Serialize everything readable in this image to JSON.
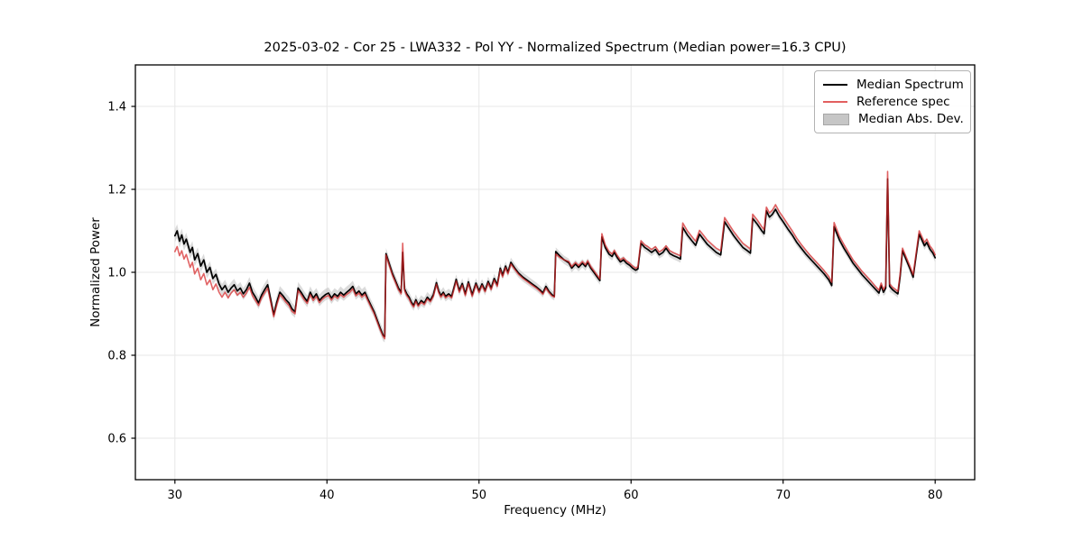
{
  "title": "2025-03-02 - Cor 25 - LWA332 - Pol YY - Normalized Spectrum (Median power=16.3 CPU)",
  "legend": {
    "items": [
      {
        "label": "Median Spectrum",
        "type": "line",
        "color": "#000000"
      },
      {
        "label": "Reference spec",
        "type": "line",
        "color": "#e25f5f"
      },
      {
        "label": "Median Abs. Dev.",
        "type": "patch",
        "color": "#c6c6c6",
        "border": "#a6a6a6"
      }
    ]
  },
  "chart_data": {
    "type": "line",
    "title": "2025-03-02 - Cor 25 - LWA332 - Pol YY - Normalized Spectrum (Median power=16.3 CPU)",
    "xlabel": "Frequency (MHz)",
    "ylabel": "Normalized Power",
    "xlim": [
      27.4,
      82.6
    ],
    "ylim": [
      0.5,
      1.5
    ],
    "xticks": [
      30,
      40,
      50,
      60,
      70,
      80
    ],
    "yticks": [
      0.6,
      0.8,
      1.0,
      1.2,
      1.4
    ],
    "grid": true,
    "legend_position": "upper right",
    "x": [
      30.0,
      30.15,
      30.3,
      30.45,
      30.6,
      30.75,
      31.0,
      31.15,
      31.3,
      31.5,
      31.7,
      31.9,
      32.1,
      32.3,
      32.5,
      32.7,
      32.9,
      33.1,
      33.3,
      33.5,
      33.7,
      33.9,
      34.1,
      34.3,
      34.5,
      34.7,
      34.9,
      35.1,
      35.3,
      35.5,
      35.7,
      35.9,
      36.1,
      36.3,
      36.5,
      36.7,
      36.9,
      37.1,
      37.3,
      37.5,
      37.7,
      37.9,
      38.1,
      38.3,
      38.5,
      38.7,
      38.9,
      39.1,
      39.3,
      39.5,
      39.7,
      39.9,
      40.1,
      40.3,
      40.5,
      40.7,
      40.9,
      41.1,
      41.3,
      41.5,
      41.7,
      41.9,
      42.1,
      42.3,
      42.5,
      42.7,
      42.9,
      43.1,
      43.3,
      43.5,
      43.7,
      43.8,
      43.88,
      44.1,
      44.3,
      44.5,
      44.7,
      44.88,
      44.98,
      45.1,
      45.25,
      45.4,
      45.55,
      45.7,
      45.85,
      46.0,
      46.2,
      46.4,
      46.6,
      46.8,
      47.0,
      47.2,
      47.35,
      47.5,
      47.65,
      47.8,
      48.0,
      48.2,
      48.5,
      48.7,
      48.9,
      49.1,
      49.3,
      49.55,
      49.8,
      50.0,
      50.2,
      50.4,
      50.6,
      50.8,
      51.0,
      51.2,
      51.4,
      51.55,
      51.75,
      51.9,
      52.1,
      52.35,
      52.6,
      52.9,
      53.2,
      53.5,
      53.8,
      54.05,
      54.2,
      54.4,
      54.6,
      54.8,
      54.95,
      55.05,
      55.3,
      55.6,
      55.9,
      56.1,
      56.35,
      56.55,
      56.8,
      57.0,
      57.15,
      57.35,
      57.55,
      57.75,
      57.95,
      58.08,
      58.3,
      58.55,
      58.75,
      58.9,
      59.1,
      59.3,
      59.5,
      59.7,
      59.9,
      60.1,
      60.3,
      60.45,
      60.65,
      60.9,
      61.1,
      61.35,
      61.6,
      61.85,
      62.1,
      62.3,
      62.55,
      62.8,
      63.05,
      63.25,
      63.4,
      63.7,
      64.0,
      64.25,
      64.5,
      64.75,
      65.0,
      65.3,
      65.6,
      65.9,
      66.15,
      66.45,
      66.75,
      67.05,
      67.35,
      67.65,
      67.85,
      68.0,
      68.3,
      68.6,
      68.75,
      68.9,
      69.1,
      69.3,
      69.5,
      69.75,
      70.0,
      70.3,
      70.6,
      70.9,
      71.2,
      71.5,
      71.8,
      72.1,
      72.4,
      72.7,
      73.0,
      73.2,
      73.35,
      73.7,
      74.0,
      74.3,
      74.6,
      74.9,
      75.2,
      75.5,
      75.8,
      76.1,
      76.3,
      76.45,
      76.6,
      76.75,
      76.87,
      77.0,
      77.2,
      77.4,
      77.55,
      77.7,
      77.85,
      78.1,
      78.35,
      78.55,
      78.75,
      78.95,
      79.15,
      79.3,
      79.45,
      79.65,
      79.85,
      80.0
    ],
    "series": [
      {
        "name": "Median Spectrum",
        "color": "#000000",
        "opacity": 1,
        "width": 1.7,
        "values": [
          1.088,
          1.1,
          1.075,
          1.09,
          1.068,
          1.08,
          1.048,
          1.06,
          1.03,
          1.045,
          1.015,
          1.03,
          1.0,
          1.012,
          0.985,
          0.995,
          0.972,
          0.958,
          0.968,
          0.952,
          0.962,
          0.97,
          0.955,
          0.962,
          0.948,
          0.958,
          0.974,
          0.952,
          0.94,
          0.926,
          0.945,
          0.958,
          0.97,
          0.935,
          0.898,
          0.928,
          0.952,
          0.944,
          0.934,
          0.926,
          0.912,
          0.905,
          0.962,
          0.952,
          0.94,
          0.93,
          0.952,
          0.938,
          0.948,
          0.932,
          0.94,
          0.946,
          0.95,
          0.938,
          0.948,
          0.942,
          0.952,
          0.945,
          0.952,
          0.958,
          0.966,
          0.948,
          0.955,
          0.945,
          0.952,
          0.935,
          0.92,
          0.905,
          0.885,
          0.865,
          0.848,
          0.845,
          1.045,
          1.02,
          0.998,
          0.98,
          0.962,
          0.952,
          1.048,
          0.96,
          0.948,
          0.94,
          0.928,
          0.92,
          0.934,
          0.921,
          0.932,
          0.926,
          0.94,
          0.932,
          0.946,
          0.975,
          0.955,
          0.944,
          0.952,
          0.942,
          0.948,
          0.942,
          0.983,
          0.956,
          0.973,
          0.948,
          0.977,
          0.946,
          0.974,
          0.955,
          0.972,
          0.956,
          0.978,
          0.962,
          0.985,
          0.97,
          1.01,
          0.993,
          1.015,
          1.0,
          1.024,
          1.01,
          0.998,
          0.988,
          0.98,
          0.972,
          0.964,
          0.956,
          0.95,
          0.966,
          0.954,
          0.946,
          0.942,
          1.05,
          1.04,
          1.03,
          1.023,
          1.01,
          1.02,
          1.012,
          1.022,
          1.014,
          1.024,
          1.01,
          1.0,
          0.99,
          0.98,
          1.085,
          1.06,
          1.044,
          1.038,
          1.048,
          1.035,
          1.025,
          1.03,
          1.022,
          1.017,
          1.01,
          1.005,
          1.008,
          1.07,
          1.06,
          1.055,
          1.048,
          1.055,
          1.042,
          1.048,
          1.058,
          1.045,
          1.04,
          1.036,
          1.032,
          1.108,
          1.09,
          1.076,
          1.065,
          1.092,
          1.08,
          1.068,
          1.058,
          1.048,
          1.042,
          1.122,
          1.105,
          1.088,
          1.074,
          1.06,
          1.052,
          1.046,
          1.13,
          1.116,
          1.1,
          1.093,
          1.148,
          1.133,
          1.14,
          1.152,
          1.135,
          1.122,
          1.105,
          1.09,
          1.072,
          1.058,
          1.044,
          1.032,
          1.02,
          1.008,
          0.996,
          0.982,
          0.968,
          1.11,
          1.078,
          1.058,
          1.04,
          1.022,
          1.008,
          0.994,
          0.982,
          0.97,
          0.958,
          0.95,
          0.968,
          0.952,
          0.962,
          1.225,
          0.966,
          0.958,
          0.952,
          0.948,
          0.99,
          1.052,
          1.03,
          1.008,
          0.988,
          1.04,
          1.092,
          1.076,
          1.064,
          1.072,
          1.056,
          1.046,
          1.035
        ]
      },
      {
        "name": "Reference spec",
        "color": "#d62728",
        "opacity": 0.72,
        "width": 1.6,
        "values": [
          1.05,
          1.062,
          1.04,
          1.052,
          1.032,
          1.043,
          1.012,
          1.024,
          0.996,
          1.01,
          0.982,
          0.997,
          0.97,
          0.982,
          0.958,
          0.972,
          0.952,
          0.94,
          0.952,
          0.938,
          0.95,
          0.958,
          0.945,
          0.952,
          0.94,
          0.95,
          0.964,
          0.944,
          0.932,
          0.92,
          0.938,
          0.95,
          0.962,
          0.928,
          0.893,
          0.922,
          0.946,
          0.938,
          0.928,
          0.92,
          0.906,
          0.9,
          0.956,
          0.946,
          0.934,
          0.925,
          0.946,
          0.932,
          0.942,
          0.927,
          0.935,
          0.941,
          0.944,
          0.933,
          0.943,
          0.937,
          0.946,
          0.94,
          0.947,
          0.952,
          0.96,
          0.943,
          0.95,
          0.94,
          0.947,
          0.931,
          0.916,
          0.901,
          0.881,
          0.861,
          0.845,
          0.84,
          1.042,
          1.016,
          0.994,
          0.976,
          0.958,
          0.948,
          1.07,
          0.956,
          0.944,
          0.936,
          0.924,
          0.916,
          0.93,
          0.918,
          0.928,
          0.922,
          0.936,
          0.929,
          0.942,
          0.971,
          0.951,
          0.94,
          0.948,
          0.938,
          0.944,
          0.938,
          0.979,
          0.952,
          0.969,
          0.944,
          0.973,
          0.942,
          0.97,
          0.951,
          0.968,
          0.953,
          0.974,
          0.958,
          0.981,
          0.966,
          1.006,
          0.989,
          1.011,
          0.996,
          1.02,
          1.007,
          0.995,
          0.985,
          0.977,
          0.969,
          0.961,
          0.953,
          0.947,
          0.962,
          0.951,
          0.943,
          0.94,
          1.044,
          1.036,
          1.03,
          1.026,
          1.014,
          1.024,
          1.016,
          1.026,
          1.018,
          1.028,
          1.014,
          1.004,
          0.994,
          0.984,
          1.093,
          1.066,
          1.05,
          1.044,
          1.053,
          1.04,
          1.03,
          1.035,
          1.027,
          1.022,
          1.015,
          1.01,
          1.013,
          1.076,
          1.066,
          1.062,
          1.055,
          1.062,
          1.049,
          1.055,
          1.064,
          1.052,
          1.047,
          1.043,
          1.04,
          1.119,
          1.1,
          1.086,
          1.075,
          1.101,
          1.09,
          1.078,
          1.068,
          1.058,
          1.052,
          1.132,
          1.115,
          1.098,
          1.084,
          1.07,
          1.062,
          1.056,
          1.14,
          1.126,
          1.11,
          1.103,
          1.157,
          1.143,
          1.15,
          1.163,
          1.146,
          1.133,
          1.116,
          1.1,
          1.082,
          1.067,
          1.053,
          1.04,
          1.028,
          1.016,
          1.004,
          0.99,
          0.976,
          1.12,
          1.087,
          1.067,
          1.048,
          1.03,
          1.016,
          1.002,
          0.99,
          0.978,
          0.965,
          0.957,
          0.974,
          0.958,
          0.968,
          1.243,
          0.972,
          0.964,
          0.958,
          0.954,
          0.996,
          1.058,
          1.036,
          1.014,
          0.994,
          1.046,
          1.1,
          1.084,
          1.072,
          1.08,
          1.064,
          1.054,
          1.042
        ]
      }
    ],
    "band": {
      "name": "Median Abs. Dev.",
      "around": "Median Spectrum",
      "color": "#bdbdbd",
      "opacity": 0.55,
      "half_width_points": [
        [
          30,
          0.016
        ],
        [
          33,
          0.014
        ],
        [
          36,
          0.015
        ],
        [
          40,
          0.014
        ],
        [
          43.8,
          0.014
        ],
        [
          44,
          0.013
        ],
        [
          50,
          0.012
        ],
        [
          55,
          0.01
        ],
        [
          58,
          0.01
        ],
        [
          60,
          0.009
        ],
        [
          63,
          0.009
        ],
        [
          66,
          0.008
        ],
        [
          70,
          0.009
        ],
        [
          76.6,
          0.009
        ],
        [
          76.8,
          0.016
        ],
        [
          76.87,
          0.022
        ],
        [
          76.95,
          0.016
        ],
        [
          77.1,
          0.009
        ],
        [
          80,
          0.01
        ]
      ]
    }
  }
}
